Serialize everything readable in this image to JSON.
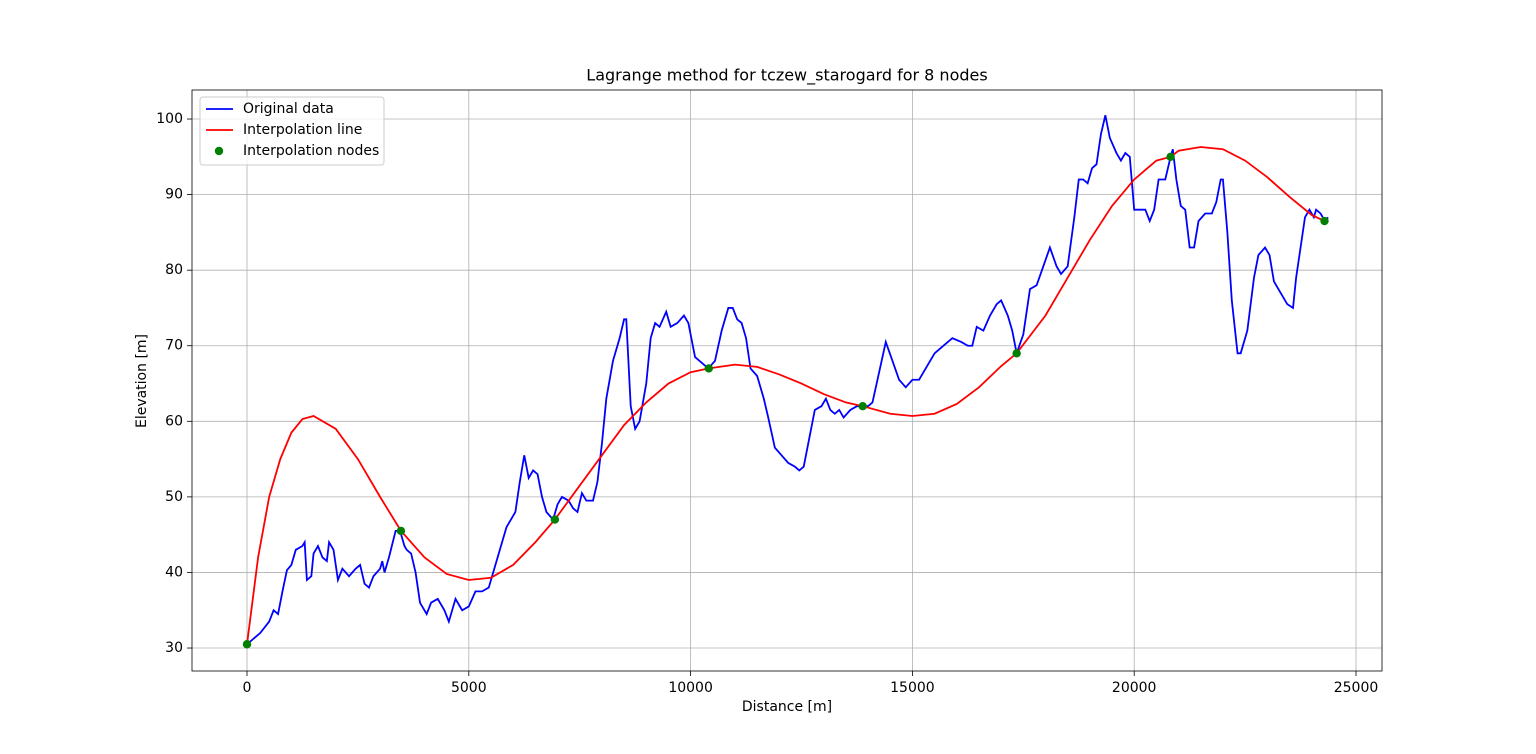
{
  "chart_data": {
    "type": "line",
    "title": "Lagrange method for tczew_starogard for 8 nodes",
    "xlabel": "Distance [m]",
    "ylabel": "Elevation [m]",
    "xlim": [
      -1240,
      25586
    ],
    "ylim": [
      26.96,
      103.84
    ],
    "xticks": [
      0,
      5000,
      10000,
      15000,
      20000,
      25000
    ],
    "yticks": [
      30,
      40,
      50,
      60,
      70,
      80,
      90,
      100
    ],
    "grid": true,
    "legend": "upper left",
    "series": [
      {
        "name": "Original data",
        "color": "#0000ff",
        "style": "line",
        "x": [
          0,
          300,
          500,
          600,
          700,
          800,
          900,
          1000,
          1100,
          1250,
          1300,
          1350,
          1450,
          1500,
          1600,
          1700,
          1800,
          1850,
          1950,
          2050,
          2150,
          2300,
          2450,
          2550,
          2650,
          2750,
          2850,
          3000,
          3050,
          3100,
          3200,
          3350,
          3450,
          3550,
          3600,
          3700,
          3800,
          3900,
          4050,
          4150,
          4300,
          4450,
          4550,
          4700,
          4850,
          5000,
          5150,
          5300,
          5450,
          5550,
          5700,
          5850,
          5950,
          6050,
          6150,
          6250,
          6350,
          6450,
          6550,
          6650,
          6750,
          6900,
          7000,
          7100,
          7250,
          7350,
          7450,
          7550,
          7650,
          7800,
          7900,
          8000,
          8100,
          8250,
          8400,
          8500,
          8550,
          8650,
          8750,
          8850,
          9000,
          9100,
          9200,
          9300,
          9450,
          9550,
          9700,
          9850,
          9950,
          10100,
          10300,
          10400,
          10550,
          10700,
          10850,
          10950,
          11050,
          11150,
          11250,
          11350,
          11500,
          11650,
          11750,
          11900,
          12050,
          12200,
          12350,
          12450,
          12550,
          12650,
          12800,
          12950,
          13050,
          13150,
          13250,
          13350,
          13450,
          13600,
          13750,
          13880,
          14000,
          14100,
          14250,
          14400,
          14550,
          14700,
          14850,
          15000,
          15150,
          15300,
          15500,
          15700,
          15900,
          16100,
          16250,
          16350,
          16450,
          16600,
          16750,
          16900,
          17000,
          17150,
          17250,
          17350,
          17500,
          17650,
          17800,
          17950,
          18100,
          18250,
          18350,
          18500,
          18650,
          18750,
          18850,
          18950,
          19050,
          19150,
          19250,
          19350,
          19450,
          19600,
          19700,
          19800,
          19900,
          20000,
          20150,
          20250,
          20350,
          20450,
          20550,
          20700,
          20820,
          20870,
          20950,
          21050,
          21150,
          21250,
          21350,
          21450,
          21600,
          21750,
          21850,
          21950,
          22000,
          22100,
          22200,
          22330,
          22400,
          22550,
          22700,
          22800,
          22950,
          23050,
          23150,
          23300,
          23450,
          23580,
          23650,
          23750,
          23850,
          23950,
          24050,
          24100,
          24200,
          24300,
          24370
        ],
        "values": [
          30.5,
          32,
          33.5,
          35,
          34.5,
          37.5,
          40.3,
          41,
          43,
          43.5,
          44,
          39,
          39.5,
          42.5,
          43.5,
          42,
          41.5,
          44,
          43,
          39,
          40.5,
          39.5,
          40.5,
          41,
          38.5,
          38,
          39.5,
          40.5,
          41.5,
          40,
          42,
          45.5,
          45.5,
          43.5,
          43,
          42.5,
          40,
          36,
          34.5,
          36,
          36.5,
          35,
          33.5,
          36.5,
          35,
          35.5,
          37.5,
          37.5,
          38,
          40,
          43,
          46,
          47,
          48,
          52,
          55.5,
          52.5,
          53.5,
          53,
          50,
          48,
          47,
          49,
          50,
          49.5,
          48.5,
          48,
          50.5,
          49.5,
          49.5,
          52,
          57,
          63,
          68,
          71,
          73.5,
          73.5,
          62,
          59,
          60,
          65,
          71,
          73,
          72.5,
          74.5,
          72.5,
          73,
          74,
          73,
          68.5,
          67.5,
          67,
          68,
          72,
          75,
          75,
          73.5,
          73,
          71,
          67,
          66,
          63,
          60.5,
          56.5,
          55.5,
          54.5,
          54,
          53.5,
          54,
          57,
          61.5,
          62,
          63,
          61.5,
          61,
          61.5,
          60.5,
          61.5,
          62,
          62,
          62,
          62.5,
          66.5,
          70.5,
          68,
          65.5,
          64.5,
          65.5,
          65.5,
          67,
          69,
          70,
          71,
          70.5,
          70,
          70,
          72.5,
          72,
          74,
          75.5,
          76,
          74,
          72,
          69,
          71.5,
          77.5,
          78,
          80.5,
          83,
          80.5,
          79.5,
          80.5,
          87,
          92,
          92,
          91.5,
          93.5,
          94,
          98,
          100.5,
          97.5,
          95.5,
          94.5,
          95.5,
          95,
          88,
          88,
          88,
          86.5,
          88,
          92,
          92,
          95,
          96,
          92,
          88.5,
          88,
          83,
          83,
          86.5,
          87.5,
          87.5,
          89,
          92,
          92,
          85,
          76,
          69,
          69,
          72,
          79,
          82,
          83,
          82,
          78.5,
          77,
          75.5,
          75,
          79,
          83,
          87,
          88,
          87,
          88,
          87.5,
          86.5,
          87
        ]
      },
      {
        "name": "Interpolation line",
        "color": "#ff0000",
        "style": "line",
        "x": [
          0,
          250,
          500,
          750,
          1000,
          1250,
          1500,
          2000,
          2500,
          3000,
          3470,
          4000,
          4500,
          5000,
          5500,
          6000,
          6500,
          6940,
          7500,
          8000,
          8500,
          9000,
          9500,
          10000,
          10410,
          11000,
          11500,
          12000,
          12500,
          13000,
          13500,
          13880,
          14500,
          15000,
          15500,
          16000,
          16500,
          17000,
          17350,
          18000,
          18500,
          19000,
          19500,
          20000,
          20500,
          20820,
          21000,
          21500,
          22000,
          22500,
          23000,
          23500,
          24000,
          24290
        ],
        "values": [
          30.5,
          42,
          50,
          55,
          58.5,
          60.3,
          60.7,
          59,
          55,
          50,
          45.5,
          42,
          39.8,
          39,
          39.3,
          41,
          44,
          47,
          51.5,
          55.5,
          59.5,
          62.5,
          65,
          66.5,
          67,
          67.5,
          67.2,
          66.2,
          65,
          63.6,
          62.5,
          62,
          61,
          60.7,
          61,
          62.3,
          64.5,
          67.3,
          69,
          74,
          79,
          84,
          88.5,
          92,
          94.5,
          95,
          95.8,
          96.3,
          96,
          94.5,
          92.3,
          89.7,
          87.3,
          86.5
        ]
      },
      {
        "name": "Interpolation nodes",
        "color": "#008000",
        "style": "points",
        "x": [
          0,
          3470,
          6940,
          10410,
          13880,
          17350,
          20820,
          24290
        ],
        "values": [
          30.5,
          45.5,
          47,
          67,
          62,
          69,
          95,
          86.5
        ]
      }
    ]
  }
}
